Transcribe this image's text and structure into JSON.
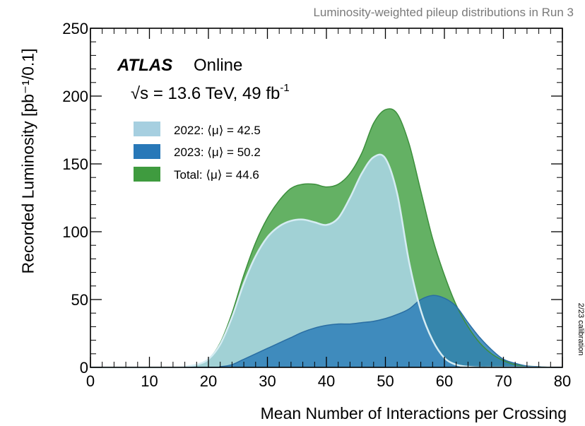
{
  "header": {
    "subtitle": "Luminosity-weighted pileup distributions in Run 3",
    "side_note": "2/23 calibration"
  },
  "annotation": {
    "experiment": "ATLAS",
    "status": "Online",
    "energy_prefix": "√s = 13.6 TeV, 49 fb",
    "energy_exponent": "-1"
  },
  "colors": {
    "total": "#4ea64e",
    "y2022": "#a6d4de",
    "y2023": "#2e7fb8",
    "legend_total": "#3f9b3f",
    "legend_2022": "#a6cfe0",
    "legend_2023": "#2878b8",
    "line_2022": "#d5ecf3"
  },
  "chart_data": {
    "type": "area",
    "title": "Luminosity-weighted pileup distributions in Run 3",
    "xlabel": "Mean Number of Interactions per Crossing",
    "ylabel": "Recorded Luminosity [pb⁻¹/0.1]",
    "xlim": [
      0,
      80
    ],
    "ylim": [
      0,
      250
    ],
    "x_ticks": [
      0,
      10,
      20,
      30,
      40,
      50,
      60,
      70,
      80
    ],
    "y_ticks": [
      0,
      50,
      100,
      150,
      200,
      250
    ],
    "grid": false,
    "legend_position": "upper-left",
    "series": [
      {
        "name": "Total: ⟨μ⟩ = 44.6",
        "label_text": "Total: ⟨μ⟩ = 44.6",
        "x": [
          0,
          14,
          16,
          18,
          20,
          22,
          24,
          26,
          28,
          30,
          32,
          34,
          36,
          38,
          40,
          42,
          44,
          46,
          48,
          50,
          52,
          54,
          56,
          58,
          60,
          62,
          64,
          66,
          68,
          70,
          72,
          74,
          76,
          78,
          80
        ],
        "y": [
          0,
          0,
          0.5,
          2,
          6,
          18,
          40,
          68,
          92,
          110,
          123,
          132,
          135,
          135,
          133,
          135,
          143,
          158,
          180,
          190,
          187,
          165,
          130,
          95,
          68,
          46,
          30,
          18,
          10,
          5,
          2,
          1,
          0.5,
          0,
          0
        ]
      },
      {
        "name": "2022: ⟨μ⟩ = 42.5",
        "label_text": "2022: ⟨μ⟩ = 42.5",
        "x": [
          0,
          14,
          16,
          18,
          20,
          22,
          24,
          26,
          28,
          30,
          32,
          34,
          36,
          38,
          40,
          42,
          44,
          46,
          48,
          50,
          52,
          54,
          56,
          58,
          60,
          62,
          64,
          66,
          68,
          70,
          80
        ],
        "y": [
          0,
          0,
          0.5,
          2,
          6,
          17,
          37,
          62,
          82,
          96,
          104,
          108,
          109,
          107,
          105,
          110,
          125,
          143,
          155,
          154,
          128,
          78,
          42,
          20,
          7,
          2,
          0.5,
          0,
          0,
          0,
          0
        ]
      },
      {
        "name": "2023: ⟨μ⟩ = 50.2",
        "label_text": "2023: ⟨μ⟩ = 50.2",
        "x": [
          0,
          20,
          22,
          24,
          26,
          28,
          30,
          32,
          34,
          36,
          38,
          40,
          42,
          44,
          46,
          48,
          50,
          52,
          54,
          56,
          58,
          60,
          62,
          64,
          66,
          68,
          70,
          72,
          74,
          76,
          78,
          80
        ],
        "y": [
          0,
          0,
          0.5,
          2,
          6,
          10,
          14,
          18,
          22,
          26,
          29,
          31,
          32,
          32,
          33,
          34,
          36,
          39,
          43,
          50,
          53,
          51,
          45,
          33,
          22,
          13,
          6,
          3,
          1,
          0.5,
          0,
          0
        ]
      }
    ]
  }
}
